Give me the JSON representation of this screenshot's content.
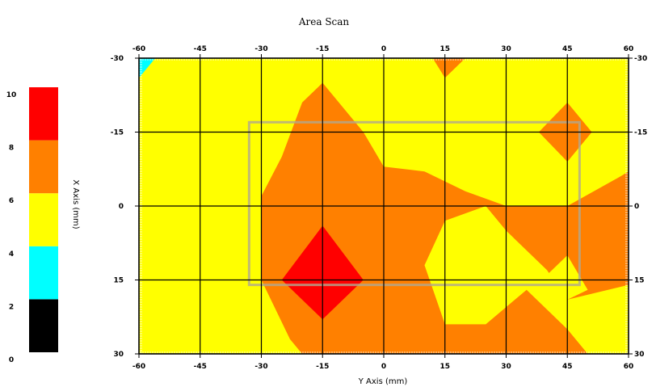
{
  "chart_data": {
    "type": "heatmap",
    "title": "Area Scan",
    "xlabel": "Y Axis (mm)",
    "ylabel": "X Axis (mm)",
    "x_ticks": [
      "-60",
      "-45",
      "-30",
      "-15",
      "0",
      "15",
      "30",
      "45",
      "60"
    ],
    "y_ticks": [
      "-30",
      "-15",
      "0",
      "15",
      "30"
    ],
    "x_values": [
      -60,
      -45,
      -30,
      -15,
      0,
      15,
      30,
      45,
      60
    ],
    "y_values": [
      -30,
      -15,
      0,
      15,
      30
    ],
    "xlim": [
      -60,
      60
    ],
    "ylim": [
      -30,
      30
    ],
    "grid": true,
    "colorbar": {
      "ticks": [
        "0",
        "2",
        "4",
        "6",
        "8",
        "10"
      ],
      "levels": [
        0,
        2,
        4,
        6,
        8,
        10
      ],
      "bands": [
        {
          "from": 0,
          "to": 2,
          "color": "#000000"
        },
        {
          "from": 2,
          "to": 4,
          "color": "#00ffff"
        },
        {
          "from": 4,
          "to": 6,
          "color": "#ffff00"
        },
        {
          "from": 6,
          "to": 8,
          "color": "#ff8000"
        },
        {
          "from": 8,
          "to": 10,
          "color": "#ff0000"
        }
      ]
    },
    "regions": [
      {
        "level": "6-8",
        "color": "#ff8000",
        "points": [
          [
            -30,
            -2
          ],
          [
            -25,
            -10
          ],
          [
            -20,
            -21
          ],
          [
            -15,
            -25
          ],
          [
            -5,
            -15
          ],
          [
            0,
            -8
          ],
          [
            10,
            -7
          ],
          [
            20,
            -3
          ],
          [
            30,
            0
          ],
          [
            45,
            0
          ],
          [
            58,
            -6
          ],
          [
            60,
            -7
          ],
          [
            60,
            30
          ],
          [
            -20,
            30
          ],
          [
            -23,
            27
          ],
          [
            -30,
            15
          ]
        ]
      },
      {
        "level": "4-6",
        "color": "#ffff00",
        "points": [
          [
            10,
            12
          ],
          [
            15,
            3
          ],
          [
            25,
            0
          ],
          [
            30,
            5
          ],
          [
            40,
            13
          ],
          [
            45,
            19
          ],
          [
            60,
            16
          ],
          [
            60,
            30
          ],
          [
            50,
            30
          ],
          [
            45,
            25
          ],
          [
            35,
            17
          ],
          [
            25,
            24
          ],
          [
            15,
            24
          ]
        ]
      },
      {
        "level": "4-6",
        "color": "#ffff00",
        "points": [
          [
            40,
            14
          ],
          [
            45,
            19
          ],
          [
            50,
            17
          ],
          [
            45,
            10
          ]
        ]
      },
      {
        "level": "8-10",
        "color": "#ff0000",
        "points": [
          [
            -15,
            4
          ],
          [
            -5,
            15
          ],
          [
            -15,
            23
          ],
          [
            -25,
            15
          ]
        ]
      },
      {
        "level": "6-8",
        "color": "#ff8000",
        "points": [
          [
            38,
            -15
          ],
          [
            45,
            -21
          ],
          [
            51,
            -15
          ],
          [
            45,
            -9
          ]
        ]
      },
      {
        "level": "6-8",
        "color": "#ff8000",
        "points": [
          [
            12,
            -30
          ],
          [
            20,
            -30
          ],
          [
            15,
            -26
          ]
        ]
      },
      {
        "level": "2-4",
        "color": "#00ffff",
        "points": [
          [
            -60,
            -30
          ],
          [
            -56,
            -30
          ],
          [
            -60,
            -26
          ]
        ]
      }
    ],
    "outline_rect": {
      "x0": -33,
      "x1": 48,
      "y0": -17,
      "y1": 16
    }
  }
}
